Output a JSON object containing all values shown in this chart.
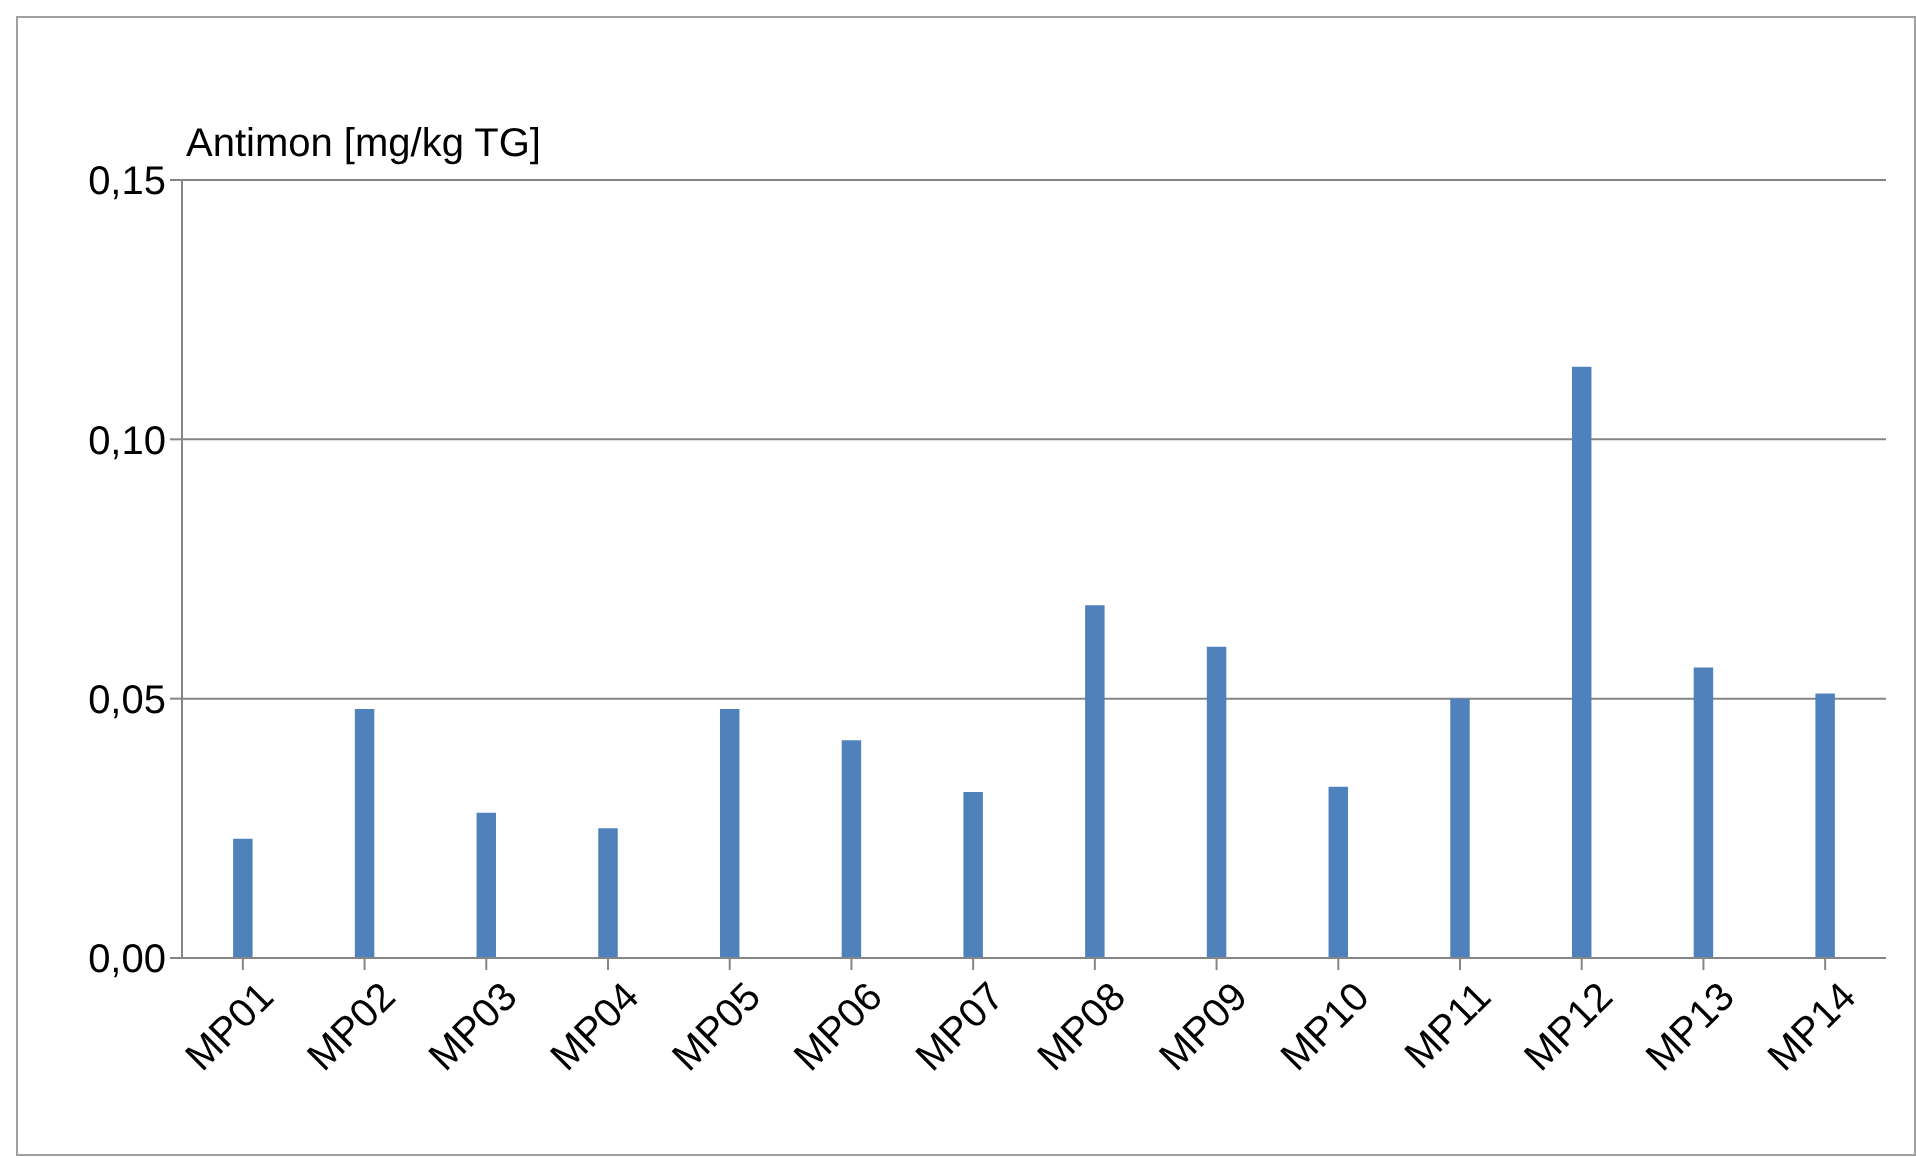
{
  "chart_data": {
    "type": "bar",
    "ylabel": "Antimon [mg/kg TG]",
    "categories": [
      "MP01",
      "MP02",
      "MP03",
      "MP04",
      "MP05",
      "MP06",
      "MP07",
      "MP08",
      "MP09",
      "MP10",
      "MP11",
      "MP12",
      "MP13",
      "MP14"
    ],
    "values": [
      0.023,
      0.048,
      0.028,
      0.025,
      0.048,
      0.042,
      0.032,
      0.068,
      0.06,
      0.033,
      0.05,
      0.114,
      0.056,
      0.051
    ],
    "color": "#4f81bd",
    "ylim": [
      0,
      0.15
    ],
    "yticks": [
      {
        "value": 0,
        "label": "0,00"
      },
      {
        "value": 0.05,
        "label": "0,05"
      },
      {
        "value": 0.1,
        "label": "0,10"
      },
      {
        "value": 0.15,
        "label": "0,15"
      }
    ],
    "grid": "y"
  }
}
